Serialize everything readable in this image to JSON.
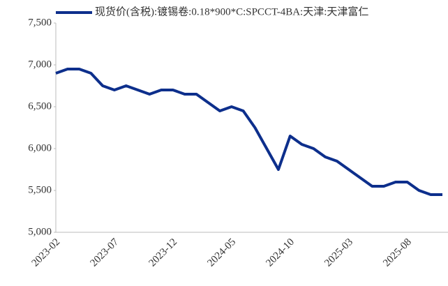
{
  "chart_data": {
    "type": "line",
    "x": [
      "2023-02",
      "2023-03",
      "2023-04",
      "2023-05",
      "2023-06",
      "2023-07",
      "2023-08",
      "2023-09",
      "2023-10",
      "2023-11",
      "2023-12",
      "2024-01",
      "2024-02",
      "2024-03",
      "2024-04",
      "2024-05",
      "2024-06",
      "2024-07",
      "2024-08",
      "2024-09",
      "2024-10",
      "2024-11",
      "2024-12",
      "2025-01",
      "2025-02",
      "2025-03",
      "2025-04",
      "2025-05",
      "2025-06",
      "2025-07",
      "2025-08",
      "2025-09",
      "2025-10",
      "2025-11"
    ],
    "xticks": [
      "2023-02",
      "2023-07",
      "2023-12",
      "2024-05",
      "2024-10",
      "2025-03",
      "2025-08"
    ],
    "series": [
      {
        "name": "现货价(含税):镀锡卷:0.18*900*C:SPCCT-4BA:天津:天津富仁",
        "color": "#0d2f8c",
        "values": [
          6900,
          6950,
          6950,
          6900,
          6750,
          6700,
          6750,
          6700,
          6650,
          6700,
          6700,
          6650,
          6650,
          6550,
          6450,
          6500,
          6450,
          6250,
          6000,
          5750,
          6150,
          6050,
          6000,
          5900,
          5850,
          5750,
          5650,
          5550,
          5550,
          5600,
          5600,
          5500,
          5450,
          5450
        ]
      }
    ],
    "ylim": [
      5000,
      7500
    ],
    "yticks": [
      {
        "value": 5000,
        "label": "5,000"
      },
      {
        "value": 5500,
        "label": "5,500"
      },
      {
        "value": 6000,
        "label": "6,000"
      },
      {
        "value": 6500,
        "label": "6,500"
      },
      {
        "value": 7000,
        "label": "7,000"
      },
      {
        "value": 7500,
        "label": "7,500"
      }
    ],
    "legend": "top"
  }
}
